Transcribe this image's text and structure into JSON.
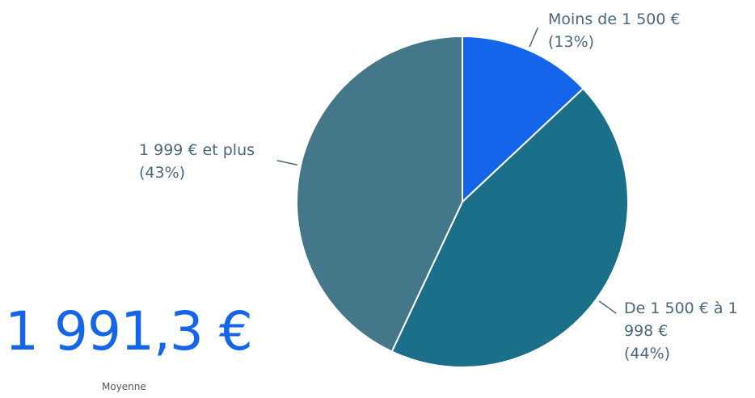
{
  "chart_data": {
    "type": "pie",
    "categories": [
      "Moins de 1 500 €",
      "De 1 500 € à 1 998 €",
      "1 999 € et plus"
    ],
    "values": [
      13,
      44,
      43
    ],
    "value_labels": [
      "(13%)",
      "(44%)",
      "(43%)"
    ],
    "colors": [
      "#1565ea",
      "#1b6f88",
      "#447789"
    ]
  },
  "kpi": {
    "value": "1 991,3 €",
    "label": "Moyenne"
  }
}
